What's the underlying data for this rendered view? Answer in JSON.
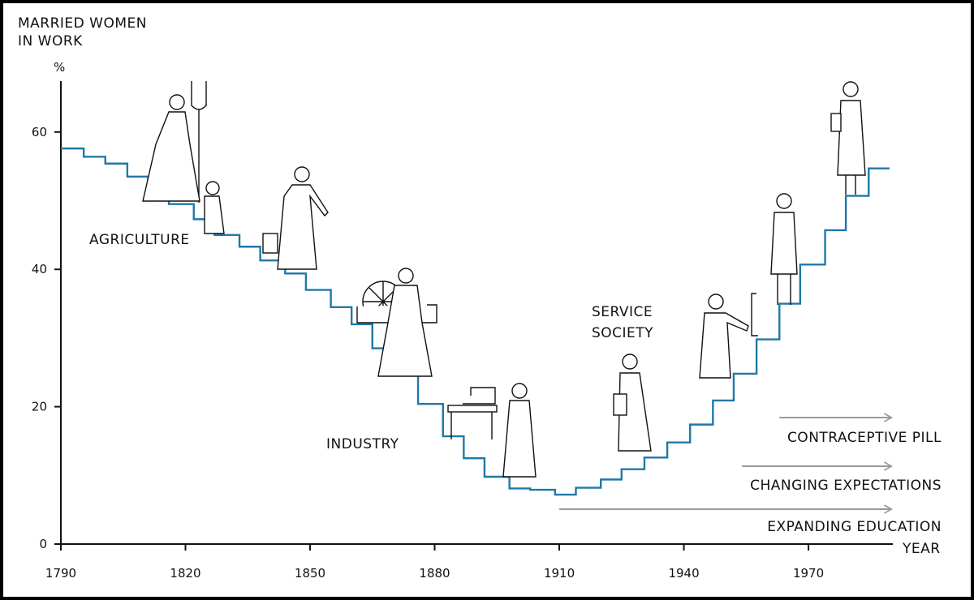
{
  "chart_data": {
    "type": "line",
    "style": "step",
    "title": "",
    "ylabel_line1": "MARRIED WOMEN",
    "ylabel_line2": "IN WORK",
    "yunit": "%",
    "xlabel": "YEAR",
    "xlim": [
      1790,
      1995
    ],
    "ylim": [
      0,
      67
    ],
    "xticks": [
      1790,
      1820,
      1850,
      1880,
      1910,
      1940,
      1970
    ],
    "yticks": [
      0,
      20,
      40,
      60
    ],
    "grid": false,
    "line_color": "#1f78a8",
    "series": [
      {
        "name": "Married women in work (%)",
        "step_start_years": [
          1790,
          1795.5,
          1800.7,
          1806,
          1811,
          1816,
          1822,
          1827,
          1833,
          1838,
          1844,
          1849,
          1855,
          1860,
          1865,
          1871,
          1876,
          1882,
          1887,
          1892,
          1898,
          1903,
          1909,
          1914,
          1920,
          1925,
          1930.5,
          1936,
          1941.5,
          1947,
          1952,
          1957.5,
          1963,
          1968,
          1974,
          1979,
          1984.5
        ],
        "end_year": 1989.5,
        "values": [
          57.6,
          56.4,
          55.4,
          53.5,
          51.5,
          49.5,
          47.3,
          45.0,
          43.3,
          41.3,
          39.4,
          37.0,
          34.5,
          32.0,
          28.5,
          24.6,
          20.4,
          15.7,
          12.5,
          9.8,
          8.1,
          7.9,
          7.2,
          8.2,
          9.4,
          10.9,
          12.6,
          14.8,
          17.4,
          20.9,
          24.8,
          29.8,
          35.0,
          40.7,
          45.7,
          50.7,
          54.7
        ]
      }
    ],
    "annotations": {
      "agriculture": "AGRICULTURE",
      "industry": "INDUSTRY",
      "service_line1": "SERVICE",
      "service_line2": "SOCIETY"
    },
    "trend_arrows": [
      {
        "label": "CONTRACEPTIVE PILL",
        "from_year": 1963,
        "to_year": 1990
      },
      {
        "label": "CHANGING EXPECTATIONS",
        "from_year": 1954,
        "to_year": 1990
      },
      {
        "label": "EXPANDING EDUCATION",
        "from_year": 1910,
        "to_year": 1990
      }
    ],
    "arrow_color": "#999999"
  }
}
